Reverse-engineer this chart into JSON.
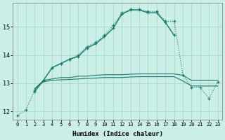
{
  "xlabel": "Humidex (Indice chaleur)",
  "background_color": "#cceee8",
  "grid_color": "#aaddcc",
  "line_color": "#1a7a6a",
  "x_values": [
    0,
    1,
    2,
    3,
    4,
    5,
    6,
    7,
    8,
    9,
    10,
    11,
    12,
    13,
    14,
    15,
    16,
    17,
    18,
    19,
    20,
    21,
    22,
    23
  ],
  "dotted_curve": [
    11.85,
    12.05,
    12.75,
    13.1,
    13.55,
    13.7,
    13.85,
    14.0,
    14.3,
    14.45,
    14.7,
    15.05,
    15.5,
    15.62,
    15.62,
    15.55,
    15.55,
    15.2,
    15.2,
    13.3,
    12.85,
    12.85,
    12.45,
    13.05
  ],
  "solid_curve_x": [
    2,
    3,
    4,
    5,
    6,
    7,
    8,
    9,
    10,
    11,
    12,
    13,
    14,
    15,
    16,
    17,
    18
  ],
  "solid_curve_y": [
    12.7,
    13.1,
    13.55,
    13.7,
    13.85,
    13.95,
    14.25,
    14.4,
    14.65,
    14.95,
    15.45,
    15.6,
    15.6,
    15.5,
    15.5,
    15.15,
    14.7
  ],
  "flat_line1_x": [
    2,
    3,
    4,
    5,
    6,
    7,
    8,
    9,
    10,
    11,
    12,
    13,
    14,
    15,
    16,
    17,
    18,
    19,
    20,
    21,
    22,
    23
  ],
  "flat_line1_y": [
    12.8,
    13.1,
    13.15,
    13.2,
    13.2,
    13.25,
    13.25,
    13.28,
    13.3,
    13.3,
    13.3,
    13.32,
    13.33,
    13.33,
    13.33,
    13.33,
    13.33,
    13.28,
    13.1,
    13.1,
    13.1,
    13.1
  ],
  "flat_line2_x": [
    2,
    3,
    4,
    5,
    6,
    7,
    8,
    9,
    10,
    11,
    12,
    13,
    14,
    15,
    16,
    17,
    18,
    19,
    20,
    21,
    22,
    23
  ],
  "flat_line2_y": [
    12.8,
    13.05,
    13.1,
    13.12,
    13.13,
    13.15,
    13.17,
    13.18,
    13.2,
    13.2,
    13.2,
    13.22,
    13.23,
    13.23,
    13.23,
    13.23,
    13.23,
    13.08,
    12.9,
    12.9,
    12.9,
    12.9
  ],
  "ylim": [
    11.7,
    15.85
  ],
  "yticks": [
    12,
    13,
    14,
    15
  ],
  "xticks": [
    0,
    1,
    2,
    3,
    4,
    5,
    6,
    7,
    8,
    9,
    10,
    11,
    12,
    13,
    14,
    15,
    16,
    17,
    18,
    19,
    20,
    21,
    22,
    23
  ]
}
